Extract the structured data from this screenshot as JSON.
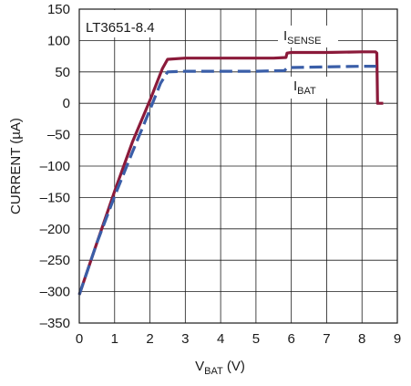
{
  "chart_data": {
    "type": "line",
    "title": "LT3651-8.4",
    "xlabel": {
      "main": "V",
      "sub": "BAT",
      "unit": " (V)"
    },
    "ylabel": "CURRENT (µA)",
    "xlim": [
      0,
      9
    ],
    "ylim": [
      -350,
      150
    ],
    "xticks": [
      "0",
      "1",
      "2",
      "3",
      "4",
      "5",
      "6",
      "7",
      "8",
      "9"
    ],
    "yticks": [
      "150",
      "100",
      "50",
      "0",
      "–50",
      "–100",
      "–150",
      "–200",
      "–250",
      "–300",
      "–350"
    ],
    "grid": true,
    "series": [
      {
        "name": {
          "main": "I",
          "sub": "SENSE"
        },
        "color": "#8b1a3a",
        "style": "solid",
        "points": [
          [
            0,
            -305
          ],
          [
            0.5,
            -222
          ],
          [
            1.0,
            -140
          ],
          [
            1.5,
            -62
          ],
          [
            2.0,
            5
          ],
          [
            2.35,
            55
          ],
          [
            2.5,
            70
          ],
          [
            3.0,
            72
          ],
          [
            4.0,
            72
          ],
          [
            5.0,
            72
          ],
          [
            5.5,
            72
          ],
          [
            5.85,
            73
          ],
          [
            5.88,
            80
          ],
          [
            6.0,
            81
          ],
          [
            7.0,
            81
          ],
          [
            8.0,
            82
          ],
          [
            8.38,
            82
          ],
          [
            8.42,
            80
          ],
          [
            8.44,
            0
          ],
          [
            8.6,
            0
          ]
        ]
      },
      {
        "name": {
          "main": "I",
          "sub": "BAT"
        },
        "color": "#3a5ea8",
        "style": "dashed",
        "points": [
          [
            0,
            -305
          ],
          [
            0.5,
            -222
          ],
          [
            1.0,
            -148
          ],
          [
            1.5,
            -78
          ],
          [
            2.0,
            -10
          ],
          [
            2.3,
            32
          ],
          [
            2.5,
            50
          ],
          [
            3.0,
            51
          ],
          [
            4.0,
            51
          ],
          [
            5.0,
            51
          ],
          [
            5.8,
            52
          ],
          [
            5.9,
            57
          ],
          [
            6.0,
            57
          ],
          [
            7.0,
            58
          ],
          [
            8.0,
            59
          ],
          [
            8.4,
            59
          ]
        ]
      }
    ]
  }
}
